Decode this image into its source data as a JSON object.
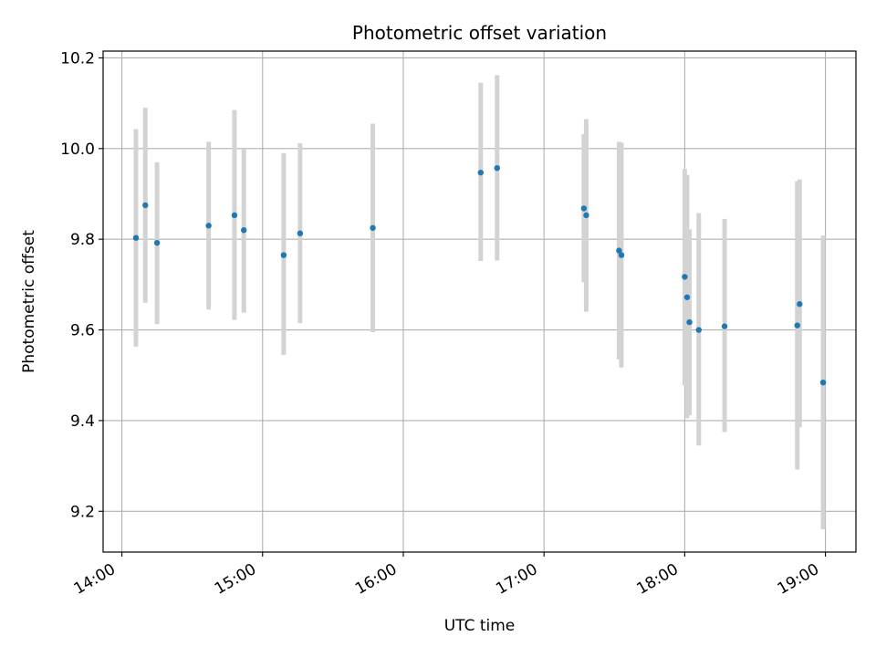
{
  "chart_data": {
    "type": "scatter",
    "title": "Photometric offset variation",
    "xlabel": "UTC time",
    "ylabel": "Photometric offset",
    "x_unit": "UTC time (HH:MM)",
    "xlim": [
      "13:52",
      "19:13"
    ],
    "ylim": [
      9.11,
      10.215
    ],
    "x_ticks": [
      "14:00",
      "15:00",
      "16:00",
      "17:00",
      "18:00",
      "19:00"
    ],
    "y_ticks": [
      9.2,
      9.4,
      9.6,
      9.8,
      10.0,
      10.2
    ],
    "y_tick_labels": [
      "9.2",
      "9.4",
      "9.6",
      "9.8",
      "10.0",
      "10.2"
    ],
    "grid": true,
    "marker_color": "#1f77b4",
    "errorbar_color": "#d3d3d3",
    "series": [
      {
        "points": [
          {
            "x": "14:06",
            "y": 9.803,
            "ylow": 9.563,
            "yhigh": 10.043
          },
          {
            "x": "14:10",
            "y": 9.875,
            "ylow": 9.66,
            "yhigh": 10.09
          },
          {
            "x": "14:15",
            "y": 9.792,
            "ylow": 9.613,
            "yhigh": 9.97
          },
          {
            "x": "14:37",
            "y": 9.83,
            "ylow": 9.645,
            "yhigh": 10.015
          },
          {
            "x": "14:48",
            "y": 9.853,
            "ylow": 9.622,
            "yhigh": 10.085
          },
          {
            "x": "14:52",
            "y": 9.82,
            "ylow": 9.638,
            "yhigh": 10.0
          },
          {
            "x": "15:09",
            "y": 9.765,
            "ylow": 9.545,
            "yhigh": 9.99
          },
          {
            "x": "15:16",
            "y": 9.813,
            "ylow": 9.615,
            "yhigh": 10.012
          },
          {
            "x": "15:47",
            "y": 9.825,
            "ylow": 9.595,
            "yhigh": 10.055
          },
          {
            "x": "16:33",
            "y": 9.947,
            "ylow": 9.752,
            "yhigh": 10.145
          },
          {
            "x": "16:40",
            "y": 9.957,
            "ylow": 9.753,
            "yhigh": 10.162
          },
          {
            "x": "17:17",
            "y": 9.868,
            "ylow": 9.705,
            "yhigh": 10.032
          },
          {
            "x": "17:18",
            "y": 9.853,
            "ylow": 9.64,
            "yhigh": 10.065
          },
          {
            "x": "17:32",
            "y": 9.775,
            "ylow": 9.535,
            "yhigh": 10.015
          },
          {
            "x": "17:33",
            "y": 9.765,
            "ylow": 9.517,
            "yhigh": 10.013
          },
          {
            "x": "18:00",
            "y": 9.717,
            "ylow": 9.478,
            "yhigh": 9.955
          },
          {
            "x": "18:01",
            "y": 9.672,
            "ylow": 9.405,
            "yhigh": 9.942
          },
          {
            "x": "18:02",
            "y": 9.617,
            "ylow": 9.412,
            "yhigh": 9.822
          },
          {
            "x": "18:06",
            "y": 9.6,
            "ylow": 9.345,
            "yhigh": 9.858
          },
          {
            "x": "18:17",
            "y": 9.608,
            "ylow": 9.375,
            "yhigh": 9.845
          },
          {
            "x": "18:48",
            "y": 9.61,
            "ylow": 9.292,
            "yhigh": 9.928
          },
          {
            "x": "18:49",
            "y": 9.657,
            "ylow": 9.385,
            "yhigh": 9.932
          },
          {
            "x": "18:59",
            "y": 9.484,
            "ylow": 9.16,
            "yhigh": 9.808
          }
        ]
      }
    ]
  }
}
